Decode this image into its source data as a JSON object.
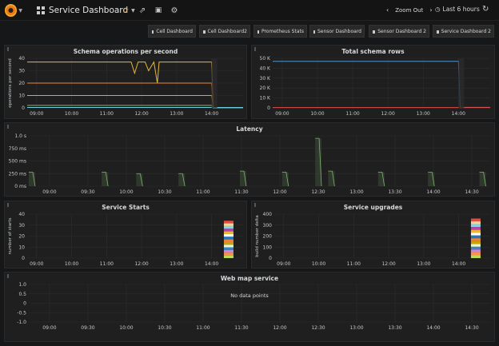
{
  "topbar": {
    "title": "Service Dashboard",
    "icons": [
      "grafana-logo-icon",
      "dashboard-grid-icon",
      "star-icon",
      "share-icon",
      "save-icon",
      "gear-icon",
      "chevron-left-icon",
      "clock-icon",
      "refresh-icon"
    ],
    "zoom_out": "Zoom Out",
    "time_range": "Last 6 hours",
    "colors": {
      "star": "#f5a623",
      "logo": "#eb7b18"
    }
  },
  "links": [
    {
      "label": "Cell Dashboard"
    },
    {
      "label": "Cell Dashboard2"
    },
    {
      "label": "Prometheus Stats"
    },
    {
      "label": "Sensor Dashboard"
    },
    {
      "label": "Sensor Dashboard 2"
    },
    {
      "label": "Service Dashboard 2"
    }
  ],
  "panels": {
    "schema_ops": {
      "title": "Schema operations per second"
    },
    "total_rows": {
      "title": "Total schema rows"
    },
    "latency": {
      "title": "Latency"
    },
    "service_starts": {
      "title": "Service Starts"
    },
    "service_upgrades": {
      "title": "Service upgrades"
    },
    "web_map": {
      "title": "Web map service",
      "no_data": "No data points"
    }
  },
  "chart_data": [
    {
      "id": "schema_ops",
      "type": "line",
      "title": "Schema operations per second",
      "ylabel": "operations per second",
      "ylim": [
        0,
        40
      ],
      "yticks": [
        0,
        10,
        20,
        30,
        40
      ],
      "xticks": [
        "09:00",
        "10:00",
        "11:00",
        "12:00",
        "13:00",
        "14:00"
      ],
      "xlim": [
        8.73,
        14.9
      ],
      "grid": true,
      "series": [
        {
          "color": "#eab839",
          "x": [
            8.73,
            11.7,
            11.8,
            11.9,
            12.1,
            12.2,
            12.35,
            12.45,
            12.5,
            14.0,
            14.05,
            14.9
          ],
          "y": [
            37,
            37,
            28,
            37,
            37,
            30,
            37,
            20,
            37,
            37,
            0,
            0
          ]
        },
        {
          "color": "#ef843c",
          "x": [
            8.73,
            14.0,
            14.05,
            14.9
          ],
          "y": [
            20,
            20,
            0,
            0
          ]
        },
        {
          "color": "#e5ac0e",
          "x": [
            8.73,
            14.0,
            14.05,
            14.9
          ],
          "y": [
            10,
            10,
            0,
            0
          ]
        },
        {
          "color": "#7eb26d",
          "x": [
            8.73,
            14.0,
            14.05,
            14.9
          ],
          "y": [
            2,
            2,
            0,
            0
          ]
        },
        {
          "color": "#6ed0e0",
          "x": [
            8.73,
            14.9
          ],
          "y": [
            0.3,
            0.3
          ]
        }
      ]
    },
    {
      "id": "total_rows",
      "type": "line",
      "title": "Total schema rows",
      "ylim": [
        0,
        50000
      ],
      "yticks": [
        "0",
        "10 K",
        "20 K",
        "30 K",
        "40 K",
        "50 K"
      ],
      "xticks": [
        "09:00",
        "10:00",
        "11:00",
        "12:00",
        "13:00",
        "14:00"
      ],
      "xlim": [
        8.73,
        14.9
      ],
      "grid": true,
      "series": [
        {
          "color": "#5195ce",
          "x": [
            8.73,
            14.0,
            14.05,
            14.9
          ],
          "y": [
            47000,
            47000,
            500,
            500
          ]
        },
        {
          "color": "#e24d42",
          "x": [
            8.73,
            14.9
          ],
          "y": [
            300,
            300
          ]
        }
      ]
    },
    {
      "id": "latency",
      "type": "bar",
      "title": "Latency",
      "yticks": [
        "0 ms",
        "250 ms",
        "500 ms",
        "750 ms",
        "1.0 s"
      ],
      "ylim": [
        0,
        1.0
      ],
      "xticks": [
        "09:00",
        "09:30",
        "10:00",
        "10:30",
        "11:00",
        "11:30",
        "12:00",
        "12:30",
        "13:00",
        "13:30",
        "14:00",
        "14:30"
      ],
      "xlim": [
        8.73,
        14.75
      ],
      "grid": true,
      "series": [
        {
          "color": "#7eb26d",
          "x": [
            8.75,
            9.7,
            10.15,
            10.7,
            11.5,
            12.05,
            12.48,
            12.65,
            13.3,
            13.95,
            14.62
          ],
          "y": [
            0.28,
            0.28,
            0.25,
            0.25,
            0.3,
            0.28,
            0.95,
            0.3,
            0.28,
            0.28,
            0.28
          ]
        }
      ]
    },
    {
      "id": "service_starts",
      "type": "bar",
      "title": "Service Starts",
      "ylabel": "number of starts",
      "ylim": [
        0,
        40
      ],
      "yticks": [
        0,
        10,
        20,
        30,
        40
      ],
      "xticks": [
        "09:00",
        "10:00",
        "11:00",
        "12:00",
        "13:00",
        "14:00"
      ],
      "xlim": [
        8.73,
        14.9
      ],
      "grid": true,
      "series": [
        {
          "color": "stacked",
          "x": [
            14.35
          ],
          "y": [
            34
          ]
        }
      ]
    },
    {
      "id": "service_upgrades",
      "type": "bar",
      "title": "Service upgrades",
      "ylabel": "build number delta",
      "ylim": [
        0,
        400
      ],
      "yticks": [
        0,
        100,
        200,
        300,
        400
      ],
      "xticks": [
        "09:00",
        "10:00",
        "11:00",
        "12:00",
        "13:00",
        "14:00"
      ],
      "xlim": [
        8.73,
        14.9
      ],
      "grid": true,
      "series": [
        {
          "color": "stacked",
          "x": [
            14.35
          ],
          "y": [
            360
          ]
        }
      ]
    },
    {
      "id": "web_map",
      "type": "line",
      "title": "Web map service",
      "ylim": [
        -1.0,
        1.0
      ],
      "yticks": [
        "-1.0",
        "-0.5",
        "0",
        "0.5",
        "1.0"
      ],
      "xticks": [
        "09:00",
        "09:30",
        "10:00",
        "10:30",
        "11:00",
        "11:30",
        "12:00",
        "12:30",
        "13:00",
        "13:30",
        "14:00",
        "14:30"
      ],
      "xlim": [
        8.73,
        14.75
      ],
      "grid": true,
      "series": []
    }
  ]
}
